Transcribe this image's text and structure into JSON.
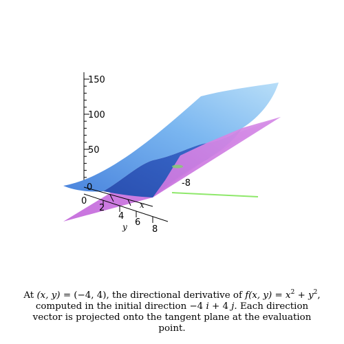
{
  "figure": {
    "z_axis": {
      "ticks": [
        "150",
        "100",
        "50",
        "0"
      ]
    },
    "x_axis": {
      "name": "x",
      "ticks": [
        "4",
        "6",
        "8",
        "-8"
      ]
    },
    "y_axis": {
      "name": "y",
      "ticks": [
        "0",
        "2",
        "4",
        "6",
        "8"
      ]
    },
    "colors": {
      "surface_light": "#9fd0f5",
      "surface_dark": "#2f5fc4",
      "tangent_plane": "#d083e3",
      "direction_vector": "#8ee86a"
    }
  },
  "caption": {
    "line1_prefix": "At",
    "point_vars": "(x, y)",
    "point_value": "= (−4, 4), the directional derivative of",
    "function_name": "f(x, y)",
    "equals": "=",
    "x_term": "x",
    "exponent": "2",
    "plus": "+",
    "y_term": "y",
    "line2_a": "computed in the initial direction −4",
    "i_vec": "i",
    "plus_4": "+ 4",
    "j_vec": "j.",
    "line2_b": "Each direction",
    "line3": "vector is projected onto the tangent plane at the evaluation",
    "line4": "point."
  }
}
